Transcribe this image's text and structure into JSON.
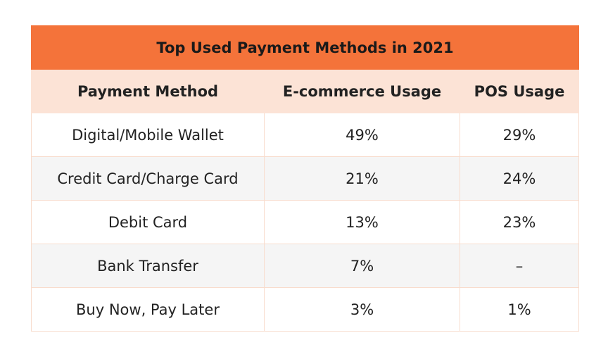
{
  "table": {
    "title": "Top Used Payment Methods in 2021",
    "header": [
      "Payment Method",
      "E-commerce Usage",
      "POS Usage"
    ],
    "rows": [
      [
        "Digital/Mobile Wallet",
        "49%",
        "29%"
      ],
      [
        "Credit Card/Charge Card",
        "21%",
        "24%"
      ],
      [
        "Debit Card",
        "13%",
        "23%"
      ],
      [
        "Bank Transfer",
        "7%",
        "–"
      ],
      [
        "Buy Now, Pay Later",
        "3%",
        "1%"
      ]
    ]
  }
}
